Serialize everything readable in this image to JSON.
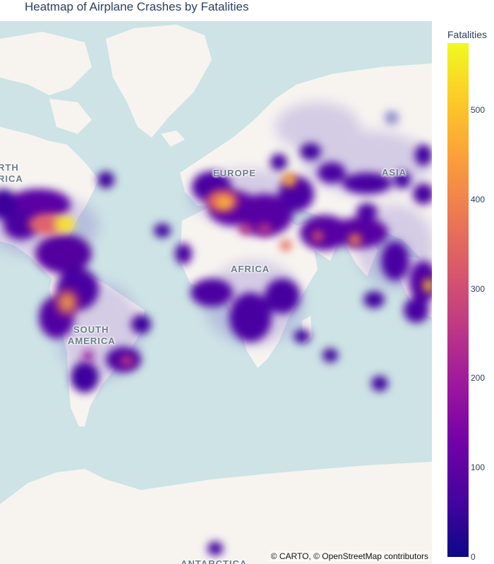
{
  "title": "Heatmap of Airplane Crashes by Fatalities",
  "map": {
    "attribution": "© CARTO, © OpenStreetMap contributors",
    "labels": {
      "north_america_line1": "RTH",
      "north_america_line2": "RICA",
      "europe": "EUROPE",
      "asia": "ASIA",
      "africa": "AFRICA",
      "south_america_line1": "SOUTH",
      "south_america_line2": "AMERICA",
      "antarctica": "ANTARCTICA"
    },
    "colors": {
      "water": "#cde3e5",
      "land": "#f7f4f0"
    }
  },
  "colorbar": {
    "title": "Fatalities",
    "min": 0,
    "max": 575,
    "ticks": [
      "0",
      "100",
      "200",
      "300",
      "400",
      "500"
    ],
    "colorscale": [
      "#0d0887",
      "#46039f",
      "#7201a8",
      "#9c179e",
      "#bd3786",
      "#d8576b",
      "#ed7953",
      "#fb9f3a",
      "#fdca26",
      "#f0f921"
    ]
  }
}
